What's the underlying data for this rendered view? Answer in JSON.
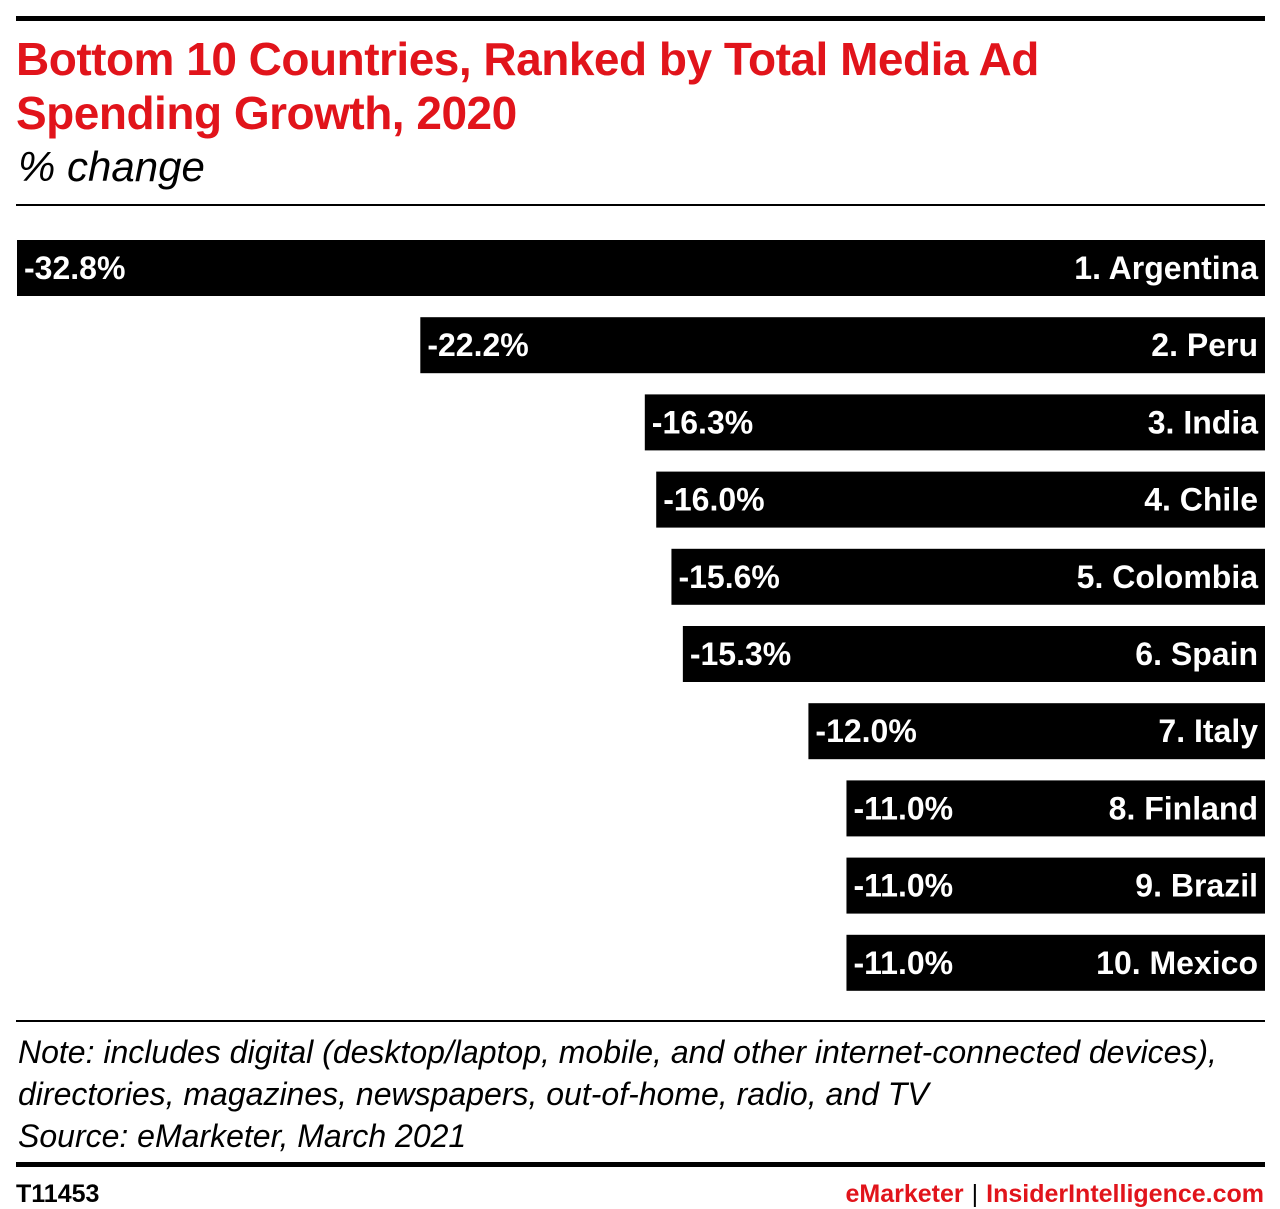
{
  "header": {
    "title": "Bottom 10 Countries, Ranked by Total Media Ad Spending Growth, 2020",
    "subtitle": "% change"
  },
  "chart_data": {
    "type": "bar",
    "orientation": "horizontal",
    "title": "Bottom 10 Countries, Ranked by Total Media Ad Spending Growth, 2020",
    "subtitle": "% change",
    "categories": [
      "1. Argentina",
      "2. Peru",
      "3. India",
      "4. Chile",
      "5. Colombia",
      "6. Spain",
      "7. Italy",
      "8. Finland",
      "9. Brazil",
      "10. Mexico"
    ],
    "values": [
      -32.8,
      -22.2,
      -16.3,
      -16.0,
      -15.6,
      -15.3,
      -12.0,
      -11.0,
      -11.0,
      -11.0
    ],
    "value_labels": [
      "-32.8%",
      "-22.2%",
      "-16.3%",
      "-16.0%",
      "-15.6%",
      "-15.3%",
      "-12.0%",
      "-11.0%",
      "-11.0%",
      "-11.0%"
    ],
    "xlim": [
      -32.8,
      0
    ],
    "grid": false,
    "legend": "none",
    "colors": {
      "bar": "#000000",
      "bar_text": "#ffffff",
      "title": "#e1141b"
    }
  },
  "notes": {
    "note": "Note: includes digital (desktop/laptop, mobile, and other internet-connected devices), directories, magazines, newspapers, out-of-home, radio, and TV",
    "source": "Source: eMarketer, March 2021"
  },
  "footer": {
    "chart_id": "T11453",
    "brand_left": "eMarketer",
    "separator": "|",
    "brand_right": "InsiderIntelligence.com"
  }
}
